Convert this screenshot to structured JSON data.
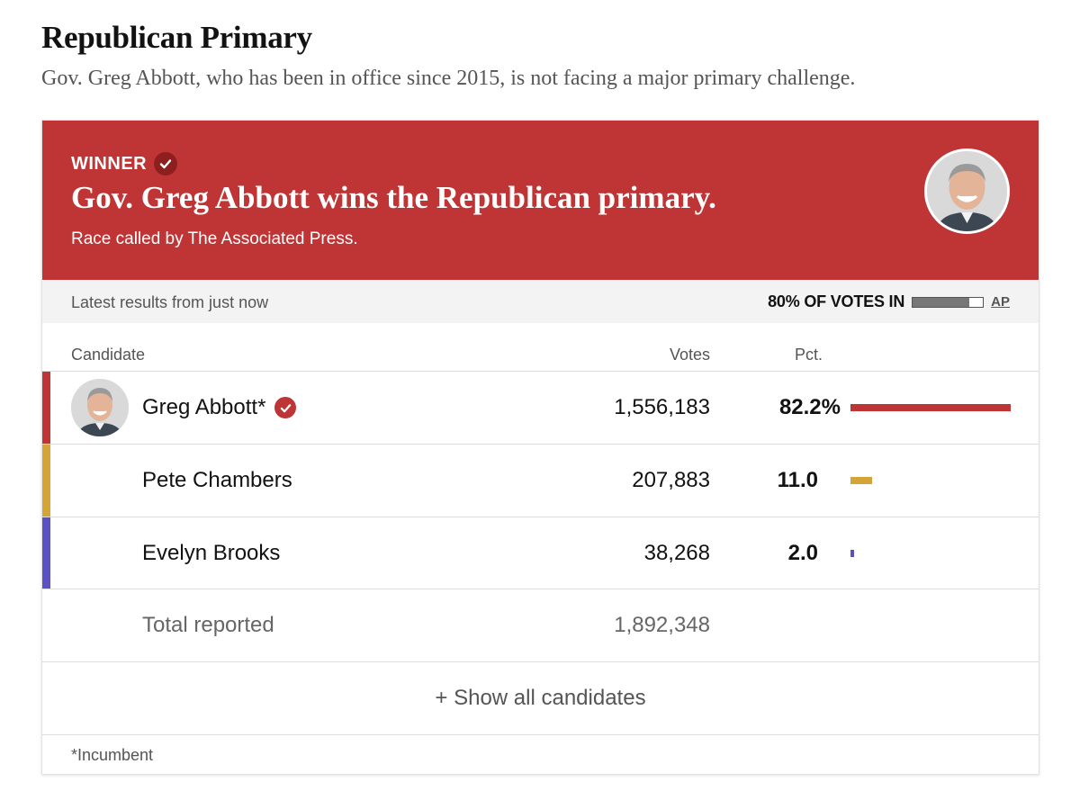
{
  "header": {
    "title": "Republican Primary",
    "subtitle": "Gov. Greg Abbott, who has been in office since 2015, is not facing a major primary challenge."
  },
  "banner": {
    "winner_label": "WINNER",
    "headline": "Gov. Greg Abbott wins the Republican primary.",
    "called_by": "Race called by The Associated Press.",
    "color": "#bf3434"
  },
  "status": {
    "latest": "Latest results from just now",
    "votes_in": "80% OF VOTES IN",
    "votes_in_fraction": 0.8,
    "source": "AP"
  },
  "columns": {
    "candidate": "Candidate",
    "votes": "Votes",
    "pct": "Pct."
  },
  "candidates": [
    {
      "name": "Greg Abbott*",
      "votes": "1,556,183",
      "pct": "82.2%",
      "pct_value": 82.2,
      "color": "#bf3434",
      "winner": true
    },
    {
      "name": "Pete Chambers",
      "votes": "207,883",
      "pct": "11.0",
      "pct_value": 11.0,
      "color": "#d4a536",
      "winner": false
    },
    {
      "name": "Evelyn Brooks",
      "votes": "38,268",
      "pct": "2.0",
      "pct_value": 2.0,
      "color": "#5b4fc4",
      "winner": false
    }
  ],
  "total": {
    "label": "Total reported",
    "votes": "1,892,348"
  },
  "show_all": "+ Show all candidates",
  "footnote": "*Incumbent"
}
